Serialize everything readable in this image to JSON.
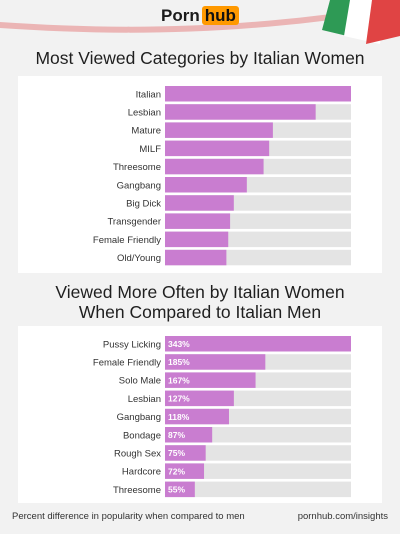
{
  "brand": {
    "part1": "Porn",
    "part2": "hub"
  },
  "footer": {
    "note": "Percent difference in popularity when compared to men",
    "site": "pornhub.com/insights"
  },
  "colors": {
    "bar": "#c97dd0",
    "track": "#e4e4e4",
    "panel": "#ffffff",
    "background": "#f2f2f2",
    "flag_green": "#2e9a55",
    "flag_red": "#e04444",
    "logo_orange": "#ff9900"
  },
  "chart_data": [
    {
      "type": "bar",
      "orientation": "horizontal",
      "title": "Most Viewed Categories by Italian Women",
      "categories": [
        "Italian",
        "Lesbian",
        "Mature",
        "MILF",
        "Threesome",
        "Gangbang",
        "Big Dick",
        "Transgender",
        "Female Friendly",
        "Old/Young"
      ],
      "values": [
        100,
        81,
        58,
        56,
        53,
        44,
        37,
        35,
        34,
        33
      ],
      "xlim": [
        0,
        100
      ],
      "data_labels": false
    },
    {
      "type": "bar",
      "orientation": "horizontal",
      "title": [
        "Viewed More Often by Italian Women",
        "When Compared to Italian Men"
      ],
      "categories": [
        "Pussy Licking",
        "Female Friendly",
        "Solo Male",
        "Lesbian",
        "Gangbang",
        "Bondage",
        "Rough Sex",
        "Hardcore",
        "Threesome"
      ],
      "values": [
        343,
        185,
        167,
        127,
        118,
        87,
        75,
        72,
        55
      ],
      "value_labels": [
        "343%",
        "185%",
        "167%",
        "127%",
        "118%",
        "87%",
        "75%",
        "72%",
        "55%"
      ],
      "xlim": [
        0,
        343
      ],
      "data_labels": true
    }
  ]
}
